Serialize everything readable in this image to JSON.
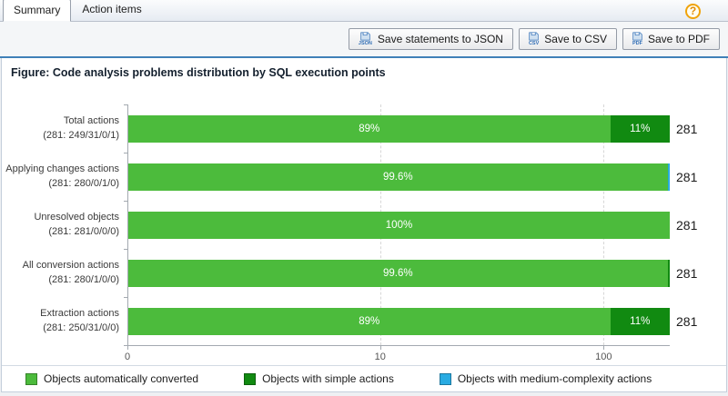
{
  "tabs": [
    {
      "label": "Summary",
      "active": true
    },
    {
      "label": "Action items",
      "active": false
    }
  ],
  "help": {
    "glyph": "?"
  },
  "toolbar": {
    "buttons": [
      {
        "label": "Save statements to JSON",
        "icon": "save-json-icon",
        "icon_badge": "JSON"
      },
      {
        "label": "Save to CSV",
        "icon": "save-csv-icon",
        "icon_badge": "CSV"
      },
      {
        "label": "Save to PDF",
        "icon": "save-pdf-icon",
        "icon_badge": "PDF"
      }
    ]
  },
  "figure": {
    "title": "Figure: Code analysis problems distribution by SQL execution points"
  },
  "chart_data": {
    "type": "bar",
    "orientation": "horizontal",
    "title": "Code analysis problems distribution by SQL execution points",
    "x_scale": "logarithmic",
    "grid": "dashed-vertical",
    "legend_position": "bottom",
    "x_ticks": [
      {
        "label": "0",
        "pos": 0
      },
      {
        "label": "10",
        "pos": 46.6
      },
      {
        "label": "100",
        "pos": 87.8
      }
    ],
    "colors": {
      "auto": "#4cbb3c",
      "simple": "#118a11",
      "medium": "#29abe2"
    },
    "categories": [
      "Total actions",
      "Applying changes actions",
      "Unresolved objects",
      "All conversion actions",
      "Extraction actions"
    ],
    "series": [
      {
        "name": "Objects automatically converted",
        "key": "auto",
        "counts": [
          249,
          280,
          281,
          280,
          250
        ]
      },
      {
        "name": "Objects with simple actions",
        "key": "simple",
        "counts": [
          31,
          0,
          0,
          1,
          31
        ]
      },
      {
        "name": "Objects with medium-complexity actions",
        "key": "medium",
        "counts": [
          0,
          1,
          0,
          0,
          0
        ]
      }
    ],
    "rows": [
      {
        "category": "Total actions",
        "sub": "(281: 249/31/0/1)",
        "total": "281",
        "segments": [
          {
            "series": "auto",
            "pct": 89,
            "label": "89%"
          },
          {
            "series": "simple",
            "pct": 11,
            "label": "11%"
          }
        ]
      },
      {
        "category": "Applying changes actions",
        "sub": "(281: 280/0/1/0)",
        "total": "281",
        "segments": [
          {
            "series": "auto",
            "pct": 99.6,
            "label": "99.6%"
          },
          {
            "series": "medium",
            "pct": 0.4,
            "label": ""
          }
        ]
      },
      {
        "category": "Unresolved objects",
        "sub": "(281: 281/0/0/0)",
        "total": "281",
        "segments": [
          {
            "series": "auto",
            "pct": 100,
            "label": "100%"
          }
        ]
      },
      {
        "category": "All conversion actions",
        "sub": "(281: 280/1/0/0)",
        "total": "281",
        "segments": [
          {
            "series": "auto",
            "pct": 99.6,
            "label": "99.6%"
          },
          {
            "series": "simple",
            "pct": 0.4,
            "label": ""
          }
        ]
      },
      {
        "category": "Extraction actions",
        "sub": "(281: 250/31/0/0)",
        "total": "281",
        "segments": [
          {
            "series": "auto",
            "pct": 89,
            "label": "89%"
          },
          {
            "series": "simple",
            "pct": 11,
            "label": "11%"
          }
        ]
      }
    ],
    "legend": [
      {
        "label": "Objects automatically converted",
        "series": "auto"
      },
      {
        "label": "Objects with simple actions",
        "series": "simple"
      },
      {
        "label": "Objects with medium-complexity actions",
        "series": "medium"
      }
    ]
  }
}
